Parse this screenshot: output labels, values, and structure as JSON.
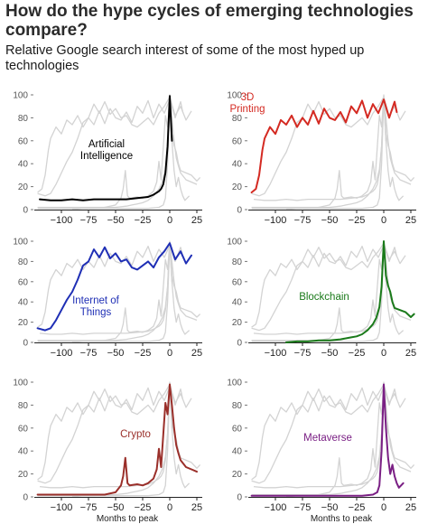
{
  "header": {
    "title": "How do the hype cycles of emerging technologies compare?",
    "subtitle": "Relative Google search interest of some of the most hyped up technologies"
  },
  "chart_data": [
    {
      "type": "line",
      "label_lines": [
        "Artificial",
        "Intelligence"
      ],
      "color": "#000000",
      "xlabel": "",
      "ylabel": "",
      "xlim": [
        -125,
        30
      ],
      "ylim": [
        0,
        100
      ],
      "x_ticks": [
        -100,
        -75,
        -50,
        -25,
        0,
        25
      ],
      "y_ticks": [
        0,
        20,
        40,
        60,
        80,
        100
      ],
      "grid": false,
      "highlight": {
        "x": [
          -120,
          -110,
          -100,
          -90,
          -80,
          -70,
          -60,
          -50,
          -40,
          -30,
          -20,
          -15,
          -10,
          -8,
          -6,
          -4,
          -2,
          0,
          2
        ],
        "y": [
          9,
          8,
          8,
          9,
          8,
          9,
          9,
          9,
          9,
          10,
          11,
          13,
          16,
          18,
          22,
          32,
          55,
          99,
          60
        ]
      }
    },
    {
      "type": "line",
      "label_lines": [
        "3D",
        "Printing"
      ],
      "color": "#d42a22",
      "xlabel": "",
      "ylabel": "",
      "xlim": [
        -125,
        30
      ],
      "ylim": [
        0,
        100
      ],
      "x_ticks": [
        -100,
        -75,
        -50,
        -25,
        0,
        25
      ],
      "y_ticks": [
        0,
        20,
        40,
        60,
        80,
        100
      ],
      "grid": false,
      "highlight": {
        "x": [
          -122,
          -118,
          -115,
          -112,
          -110,
          -105,
          -100,
          -95,
          -90,
          -85,
          -80,
          -75,
          -70,
          -65,
          -60,
          -55,
          -50,
          -45,
          -40,
          -35,
          -30,
          -25,
          -20,
          -15,
          -10,
          -5,
          0,
          5,
          10,
          12
        ],
        "y": [
          15,
          18,
          30,
          52,
          62,
          72,
          66,
          78,
          74,
          82,
          72,
          80,
          74,
          86,
          75,
          88,
          80,
          78,
          85,
          76,
          90,
          84,
          95,
          80,
          92,
          84,
          96,
          80,
          94,
          85
        ]
      }
    },
    {
      "type": "line",
      "label_lines": [
        "Internet of",
        "Things"
      ],
      "color": "#1f2fb5",
      "xlabel": "",
      "ylabel": "",
      "xlim": [
        -125,
        30
      ],
      "ylim": [
        0,
        100
      ],
      "x_ticks": [
        -100,
        -75,
        -50,
        -25,
        0,
        25
      ],
      "y_ticks": [
        0,
        20,
        40,
        60,
        80,
        100
      ],
      "grid": false,
      "highlight": {
        "x": [
          -122,
          -115,
          -110,
          -105,
          -100,
          -95,
          -90,
          -85,
          -80,
          -75,
          -70,
          -65,
          -60,
          -55,
          -50,
          -45,
          -40,
          -35,
          -30,
          -25,
          -20,
          -15,
          -10,
          -5,
          0,
          5,
          10,
          15,
          20
        ],
        "y": [
          14,
          12,
          14,
          22,
          32,
          42,
          50,
          62,
          76,
          80,
          92,
          84,
          94,
          83,
          88,
          80,
          82,
          74,
          72,
          76,
          80,
          74,
          84,
          90,
          98,
          82,
          90,
          78,
          86
        ]
      }
    },
    {
      "type": "line",
      "label_lines": [
        "Blockchain"
      ],
      "color": "#1a7a1a",
      "xlabel": "",
      "ylabel": "",
      "xlim": [
        -125,
        30
      ],
      "ylim": [
        0,
        100
      ],
      "x_ticks": [
        -100,
        -75,
        -50,
        -25,
        0,
        25
      ],
      "y_ticks": [
        0,
        20,
        40,
        60,
        80,
        100
      ],
      "grid": false,
      "highlight": {
        "x": [
          -90,
          -80,
          -70,
          -60,
          -50,
          -40,
          -35,
          -30,
          -25,
          -20,
          -15,
          -10,
          -7,
          -4,
          -2,
          0,
          2,
          4,
          6,
          8,
          10,
          15,
          20,
          25,
          28
        ],
        "y": [
          0,
          1,
          1,
          2,
          2,
          3,
          4,
          5,
          6,
          8,
          12,
          18,
          24,
          35,
          55,
          100,
          66,
          56,
          50,
          40,
          34,
          32,
          30,
          25,
          28
        ]
      }
    },
    {
      "type": "line",
      "label_lines": [
        "Crypto"
      ],
      "color": "#9a2f2a",
      "xlabel": "Months to peak",
      "ylabel": "",
      "xlim": [
        -125,
        30
      ],
      "ylim": [
        0,
        100
      ],
      "x_ticks": [
        -100,
        -75,
        -50,
        -25,
        0,
        25
      ],
      "y_ticks": [
        0,
        20,
        40,
        60,
        80,
        100
      ],
      "grid": false,
      "highlight": {
        "x": [
          -122,
          -100,
          -80,
          -60,
          -50,
          -45,
          -43,
          -41,
          -39,
          -37,
          -30,
          -25,
          -20,
          -15,
          -12,
          -10,
          -8,
          -6,
          -4,
          -2,
          0,
          2,
          4,
          6,
          8,
          10,
          15,
          20,
          25
        ],
        "y": [
          2,
          2,
          2,
          2,
          4,
          10,
          18,
          34,
          12,
          10,
          11,
          10,
          12,
          16,
          24,
          42,
          26,
          54,
          82,
          72,
          98,
          80,
          60,
          45,
          38,
          32,
          26,
          24,
          22
        ]
      }
    },
    {
      "type": "line",
      "label_lines": [
        "Metaverse"
      ],
      "color": "#7a1f84",
      "xlabel": "Months to peak",
      "ylabel": "",
      "xlim": [
        -125,
        30
      ],
      "ylim": [
        0,
        100
      ],
      "x_ticks": [
        -100,
        -75,
        -50,
        -25,
        0,
        25
      ],
      "y_ticks": [
        0,
        20,
        40,
        60,
        80,
        100
      ],
      "grid": false,
      "highlight": {
        "x": [
          -122,
          -100,
          -80,
          -60,
          -40,
          -20,
          -10,
          -6,
          -4,
          -2,
          0,
          2,
          4,
          6,
          8,
          10,
          12,
          14,
          16,
          18
        ],
        "y": [
          1,
          1,
          1,
          1,
          1,
          1,
          2,
          4,
          10,
          40,
          98,
          60,
          34,
          20,
          28,
          18,
          12,
          8,
          10,
          12
        ]
      }
    }
  ]
}
